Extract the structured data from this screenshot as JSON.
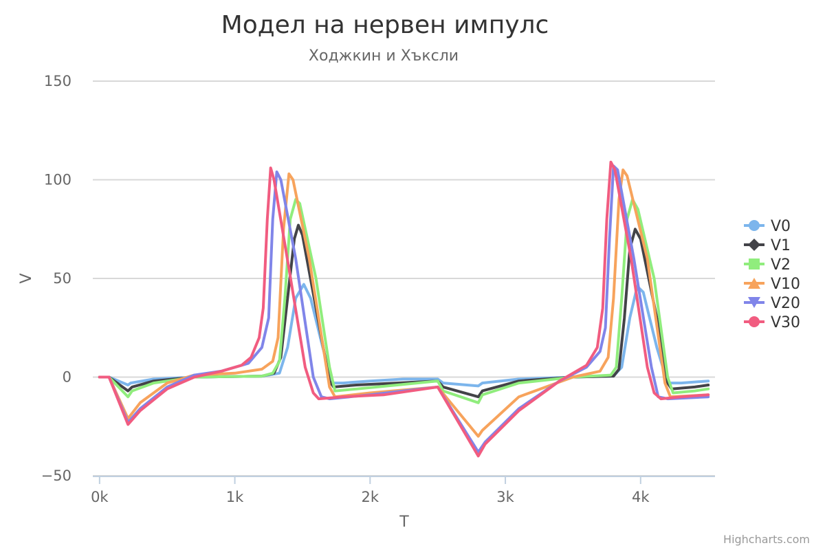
{
  "chart_data": {
    "type": "line",
    "title": "Модел на нервен импулс",
    "subtitle": "Ходжкин и Хъксли",
    "xlabel": "T",
    "ylabel": "V",
    "xlim": [
      -50,
      4550
    ],
    "ylim": [
      -50,
      150
    ],
    "x_ticks": [
      0,
      1000,
      2000,
      3000,
      4000
    ],
    "x_tick_labels": [
      "0k",
      "1k",
      "2k",
      "3k",
      "4k"
    ],
    "y_ticks": [
      -50,
      0,
      50,
      100,
      150
    ],
    "y_tick_labels": [
      "−50",
      "0",
      "50",
      "100",
      "150"
    ],
    "grid": true,
    "legend_position": "right",
    "series": [
      {
        "name": "V0",
        "color": "#7cb5ec",
        "marker": "circle",
        "points": [
          [
            0,
            0
          ],
          [
            70,
            0
          ],
          [
            210,
            -4
          ],
          [
            230,
            -3
          ],
          [
            400,
            -1
          ],
          [
            700,
            0
          ],
          [
            1200,
            0.5
          ],
          [
            1330,
            2
          ],
          [
            1390,
            15
          ],
          [
            1450,
            40
          ],
          [
            1510,
            47
          ],
          [
            1560,
            40
          ],
          [
            1650,
            15
          ],
          [
            1720,
            -3
          ],
          [
            1800,
            -3
          ],
          [
            2000,
            -2
          ],
          [
            2250,
            -1
          ],
          [
            2500,
            -1
          ],
          [
            2540,
            -3
          ],
          [
            2800,
            -4.5
          ],
          [
            2830,
            -3
          ],
          [
            3100,
            -1
          ],
          [
            3500,
            0
          ],
          [
            3800,
            0.5
          ],
          [
            3860,
            5
          ],
          [
            3920,
            30
          ],
          [
            3975,
            46
          ],
          [
            4020,
            43
          ],
          [
            4120,
            15
          ],
          [
            4200,
            -3
          ],
          [
            4300,
            -3
          ],
          [
            4500,
            -2
          ]
        ]
      },
      {
        "name": "V1",
        "color": "#434348",
        "marker": "diamond",
        "points": [
          [
            0,
            0
          ],
          [
            70,
            0
          ],
          [
            210,
            -7
          ],
          [
            240,
            -5
          ],
          [
            400,
            -2
          ],
          [
            700,
            0
          ],
          [
            1200,
            0.5
          ],
          [
            1290,
            2
          ],
          [
            1340,
            10
          ],
          [
            1390,
            40
          ],
          [
            1440,
            70
          ],
          [
            1470,
            77
          ],
          [
            1500,
            72
          ],
          [
            1600,
            35
          ],
          [
            1700,
            -2
          ],
          [
            1730,
            -5
          ],
          [
            1900,
            -4
          ],
          [
            2200,
            -3
          ],
          [
            2500,
            -2
          ],
          [
            2540,
            -5
          ],
          [
            2800,
            -10
          ],
          [
            2830,
            -7
          ],
          [
            3100,
            -2
          ],
          [
            3500,
            0
          ],
          [
            3800,
            0.5
          ],
          [
            3840,
            4
          ],
          [
            3880,
            30
          ],
          [
            3920,
            65
          ],
          [
            3960,
            75
          ],
          [
            4000,
            70
          ],
          [
            4120,
            30
          ],
          [
            4200,
            -3
          ],
          [
            4230,
            -6
          ],
          [
            4400,
            -5
          ],
          [
            4500,
            -4
          ]
        ]
      },
      {
        "name": "V2",
        "color": "#90ed7d",
        "marker": "square",
        "points": [
          [
            0,
            0
          ],
          [
            70,
            0
          ],
          [
            210,
            -10
          ],
          [
            240,
            -7
          ],
          [
            400,
            -3
          ],
          [
            700,
            0
          ],
          [
            1200,
            0.5
          ],
          [
            1280,
            2
          ],
          [
            1330,
            8
          ],
          [
            1370,
            40
          ],
          [
            1410,
            80
          ],
          [
            1450,
            90
          ],
          [
            1480,
            88
          ],
          [
            1600,
            50
          ],
          [
            1700,
            5
          ],
          [
            1740,
            -7
          ],
          [
            1900,
            -6
          ],
          [
            2200,
            -4
          ],
          [
            2500,
            -2
          ],
          [
            2540,
            -7
          ],
          [
            2800,
            -13
          ],
          [
            2830,
            -9
          ],
          [
            3100,
            -3
          ],
          [
            3500,
            0
          ],
          [
            3780,
            1
          ],
          [
            3820,
            5
          ],
          [
            3860,
            40
          ],
          [
            3900,
            80
          ],
          [
            3940,
            90
          ],
          [
            3980,
            85
          ],
          [
            4100,
            50
          ],
          [
            4200,
            0
          ],
          [
            4240,
            -8
          ],
          [
            4400,
            -7
          ],
          [
            4500,
            -6
          ]
        ]
      },
      {
        "name": "V10",
        "color": "#f7a35c",
        "marker": "triangle",
        "points": [
          [
            0,
            0
          ],
          [
            70,
            0
          ],
          [
            210,
            -21
          ],
          [
            300,
            -13
          ],
          [
            500,
            -3
          ],
          [
            700,
            1
          ],
          [
            1000,
            2
          ],
          [
            1200,
            4
          ],
          [
            1280,
            8
          ],
          [
            1320,
            20
          ],
          [
            1360,
            75
          ],
          [
            1400,
            103
          ],
          [
            1430,
            100
          ],
          [
            1550,
            60
          ],
          [
            1700,
            -5
          ],
          [
            1740,
            -10
          ],
          [
            2000,
            -8
          ],
          [
            2500,
            -5
          ],
          [
            2800,
            -30
          ],
          [
            2830,
            -27
          ],
          [
            3100,
            -10
          ],
          [
            3500,
            0
          ],
          [
            3700,
            3
          ],
          [
            3760,
            10
          ],
          [
            3800,
            40
          ],
          [
            3840,
            90
          ],
          [
            3870,
            105
          ],
          [
            3900,
            102
          ],
          [
            4050,
            60
          ],
          [
            4180,
            -3
          ],
          [
            4220,
            -10
          ],
          [
            4500,
            -9
          ]
        ]
      },
      {
        "name": "V20",
        "color": "#8085e9",
        "marker": "triangle-down",
        "points": [
          [
            0,
            0
          ],
          [
            70,
            0
          ],
          [
            210,
            -23
          ],
          [
            300,
            -16
          ],
          [
            500,
            -5
          ],
          [
            700,
            1
          ],
          [
            900,
            3
          ],
          [
            1100,
            7
          ],
          [
            1200,
            15
          ],
          [
            1250,
            30
          ],
          [
            1280,
            80
          ],
          [
            1310,
            104
          ],
          [
            1340,
            100
          ],
          [
            1450,
            60
          ],
          [
            1580,
            0
          ],
          [
            1640,
            -10
          ],
          [
            1700,
            -11
          ],
          [
            2000,
            -9
          ],
          [
            2500,
            -5
          ],
          [
            2800,
            -38
          ],
          [
            2850,
            -33
          ],
          [
            3100,
            -16
          ],
          [
            3400,
            -2
          ],
          [
            3600,
            5
          ],
          [
            3700,
            13
          ],
          [
            3740,
            25
          ],
          [
            3770,
            70
          ],
          [
            3800,
            107
          ],
          [
            3830,
            105
          ],
          [
            3950,
            60
          ],
          [
            4080,
            5
          ],
          [
            4130,
            -10
          ],
          [
            4200,
            -11
          ],
          [
            4500,
            -10
          ]
        ]
      },
      {
        "name": "V30",
        "color": "#f15c80",
        "marker": "circle",
        "points": [
          [
            0,
            0
          ],
          [
            70,
            0
          ],
          [
            210,
            -24
          ],
          [
            300,
            -17
          ],
          [
            500,
            -6
          ],
          [
            700,
            0
          ],
          [
            900,
            3
          ],
          [
            1050,
            6
          ],
          [
            1120,
            10
          ],
          [
            1180,
            20
          ],
          [
            1210,
            35
          ],
          [
            1240,
            80
          ],
          [
            1265,
            106
          ],
          [
            1290,
            100
          ],
          [
            1400,
            55
          ],
          [
            1520,
            5
          ],
          [
            1580,
            -8
          ],
          [
            1620,
            -11
          ],
          [
            1800,
            -10
          ],
          [
            2100,
            -9
          ],
          [
            2500,
            -5
          ],
          [
            2800,
            -40
          ],
          [
            2850,
            -34
          ],
          [
            3100,
            -17
          ],
          [
            3400,
            -2
          ],
          [
            3600,
            6
          ],
          [
            3680,
            15
          ],
          [
            3720,
            35
          ],
          [
            3750,
            80
          ],
          [
            3780,
            109
          ],
          [
            3810,
            105
          ],
          [
            3930,
            60
          ],
          [
            4050,
            5
          ],
          [
            4100,
            -8
          ],
          [
            4150,
            -11
          ],
          [
            4300,
            -10
          ],
          [
            4500,
            -9
          ]
        ]
      }
    ]
  },
  "credits": "Highcharts.com"
}
